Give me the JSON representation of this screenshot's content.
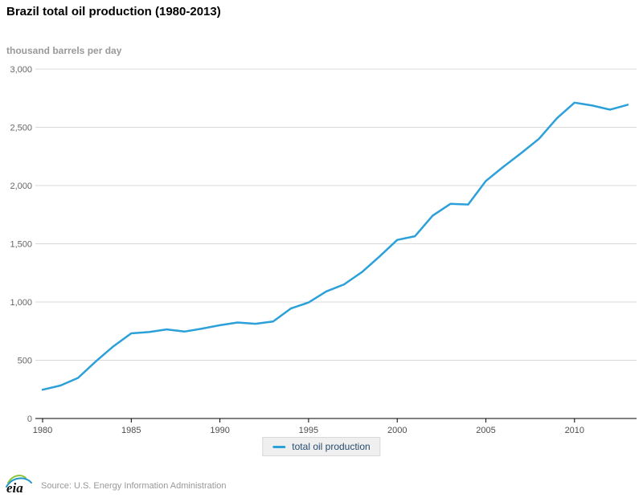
{
  "header": {
    "title": "Brazil total oil production (1980-2013)"
  },
  "unit_label": "thousand barrels per day",
  "legend": {
    "items": [
      {
        "label": "total oil production",
        "color": "#2BA0D9"
      }
    ]
  },
  "footer": {
    "logo": "eia-logo",
    "source_text": "Source: U.S. Energy Information Administration"
  },
  "colors": {
    "line": "#2BA0D9",
    "grid": "#d8d8d8",
    "axis": "#000000",
    "y_tick_text": "#666666",
    "x_tick_text": "#4d4d4d",
    "legend_bg": "#efefef",
    "legend_border": "#d9d9d9",
    "legend_text": "#274b6d",
    "subtitle_text": "#999999",
    "logo_green": "#8cc63e",
    "logo_blue": "#2196c9"
  },
  "chart_data": {
    "type": "line",
    "title": "Brazil total oil production (1980-2013)",
    "xlabel": "",
    "ylabel": "thousand barrels per day",
    "x": [
      1980,
      1981,
      1982,
      1983,
      1984,
      1985,
      1986,
      1987,
      1988,
      1989,
      1990,
      1991,
      1992,
      1993,
      1994,
      1995,
      1996,
      1997,
      1998,
      1999,
      2000,
      2001,
      2002,
      2003,
      2004,
      2005,
      2006,
      2007,
      2008,
      2009,
      2010,
      2011,
      2012,
      2013
    ],
    "series": [
      {
        "name": "total oil production",
        "color": "#2BA0D9",
        "values": [
          247,
          283,
          348,
          490,
          620,
          731,
          742,
          765,
          746,
          772,
          801,
          824,
          813,
          833,
          944,
          996,
          1091,
          1151,
          1256,
          1391,
          1533,
          1565,
          1742,
          1843,
          1837,
          2039,
          2163,
          2279,
          2402,
          2577,
          2712,
          2687,
          2652,
          2694
        ]
      }
    ],
    "ylim": [
      0,
      3000
    ],
    "yticks": [
      0,
      500,
      1000,
      1500,
      2000,
      2500,
      3000
    ],
    "xticks": [
      1980,
      1985,
      1990,
      1995,
      2000,
      2005,
      2010
    ],
    "grid": true,
    "legend_position": "bottom-center"
  }
}
